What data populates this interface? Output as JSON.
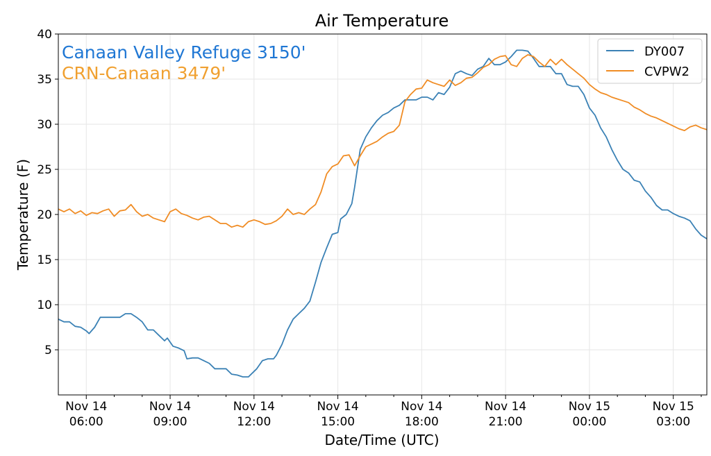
{
  "chart_data": {
    "type": "line",
    "title": "Air Temperature",
    "xlabel": "Date/Time (UTC)",
    "ylabel": "Temperature (F)",
    "xlim": [
      5.0,
      28.2
    ],
    "ylim": [
      0,
      40
    ],
    "yticks": [
      5,
      10,
      15,
      20,
      25,
      30,
      35,
      40
    ],
    "grid": true,
    "x_units": "hours since Nov 14 00:00 UTC",
    "xticks": [
      {
        "x": 6,
        "line1": "Nov 14",
        "line2": "06:00"
      },
      {
        "x": 9,
        "line1": "Nov 14",
        "line2": "09:00"
      },
      {
        "x": 12,
        "line1": "Nov 14",
        "line2": "12:00"
      },
      {
        "x": 15,
        "line1": "Nov 14",
        "line2": "15:00"
      },
      {
        "x": 18,
        "line1": "Nov 14",
        "line2": "18:00"
      },
      {
        "x": 21,
        "line1": "Nov 14",
        "line2": "21:00"
      },
      {
        "x": 24,
        "line1": "Nov 15",
        "line2": "00:00"
      },
      {
        "x": 27,
        "line1": "Nov 15",
        "line2": "03:00"
      }
    ],
    "minor_xticks": [
      7,
      8,
      10,
      11,
      13,
      14,
      16,
      17,
      19,
      20,
      22,
      23,
      25,
      26,
      28
    ],
    "annotations": [
      {
        "text": "Canaan Valley Refuge 3150'",
        "color": "#1f77d4"
      },
      {
        "text": "CRN-Canaan 3479'",
        "color": "#f0a030"
      }
    ],
    "legend": {
      "position": "top-right"
    },
    "series": [
      {
        "name": "DY007",
        "color": "#3a81b5",
        "points": [
          [
            5.0,
            8.4
          ],
          [
            5.2,
            8.1
          ],
          [
            5.4,
            8.1
          ],
          [
            5.6,
            7.6
          ],
          [
            5.8,
            7.5
          ],
          [
            6.0,
            7.1
          ],
          [
            6.1,
            6.8
          ],
          [
            6.3,
            7.5
          ],
          [
            6.5,
            8.6
          ],
          [
            6.8,
            8.6
          ],
          [
            7.0,
            8.6
          ],
          [
            7.2,
            8.6
          ],
          [
            7.4,
            9.0
          ],
          [
            7.6,
            9.0
          ],
          [
            7.8,
            8.6
          ],
          [
            8.0,
            8.1
          ],
          [
            8.2,
            7.2
          ],
          [
            8.4,
            7.2
          ],
          [
            8.6,
            6.6
          ],
          [
            8.8,
            6.0
          ],
          [
            8.9,
            6.3
          ],
          [
            9.1,
            5.4
          ],
          [
            9.3,
            5.2
          ],
          [
            9.5,
            4.9
          ],
          [
            9.6,
            4.0
          ],
          [
            9.8,
            4.1
          ],
          [
            10.0,
            4.1
          ],
          [
            10.2,
            3.8
          ],
          [
            10.4,
            3.5
          ],
          [
            10.6,
            2.9
          ],
          [
            10.8,
            2.9
          ],
          [
            11.0,
            2.9
          ],
          [
            11.2,
            2.3
          ],
          [
            11.4,
            2.2
          ],
          [
            11.6,
            2.0
          ],
          [
            11.8,
            2.0
          ],
          [
            12.0,
            2.6
          ],
          [
            12.1,
            2.9
          ],
          [
            12.3,
            3.8
          ],
          [
            12.5,
            4.0
          ],
          [
            12.7,
            4.0
          ],
          [
            12.8,
            4.4
          ],
          [
            13.0,
            5.6
          ],
          [
            13.2,
            7.2
          ],
          [
            13.4,
            8.4
          ],
          [
            13.6,
            9.0
          ],
          [
            13.8,
            9.6
          ],
          [
            14.0,
            10.4
          ],
          [
            14.2,
            12.5
          ],
          [
            14.4,
            14.7
          ],
          [
            14.6,
            16.3
          ],
          [
            14.8,
            17.8
          ],
          [
            15.0,
            18.0
          ],
          [
            15.1,
            19.5
          ],
          [
            15.3,
            20.0
          ],
          [
            15.5,
            21.2
          ],
          [
            15.6,
            23.0
          ],
          [
            15.8,
            27.2
          ],
          [
            16.0,
            28.6
          ],
          [
            16.2,
            29.6
          ],
          [
            16.4,
            30.4
          ],
          [
            16.6,
            31.0
          ],
          [
            16.8,
            31.3
          ],
          [
            17.0,
            31.8
          ],
          [
            17.2,
            32.1
          ],
          [
            17.4,
            32.7
          ],
          [
            17.6,
            32.7
          ],
          [
            17.8,
            32.7
          ],
          [
            18.0,
            33.0
          ],
          [
            18.2,
            33.0
          ],
          [
            18.4,
            32.7
          ],
          [
            18.6,
            33.5
          ],
          [
            18.8,
            33.3
          ],
          [
            19.0,
            34.1
          ],
          [
            19.2,
            35.6
          ],
          [
            19.4,
            35.9
          ],
          [
            19.6,
            35.6
          ],
          [
            19.8,
            35.4
          ],
          [
            20.0,
            36.1
          ],
          [
            20.2,
            36.4
          ],
          [
            20.4,
            37.3
          ],
          [
            20.6,
            36.6
          ],
          [
            20.8,
            36.6
          ],
          [
            21.0,
            36.9
          ],
          [
            21.2,
            37.5
          ],
          [
            21.4,
            38.2
          ],
          [
            21.6,
            38.2
          ],
          [
            21.8,
            38.1
          ],
          [
            22.0,
            37.3
          ],
          [
            22.2,
            36.4
          ],
          [
            22.4,
            36.4
          ],
          [
            22.6,
            36.4
          ],
          [
            22.8,
            35.6
          ],
          [
            23.0,
            35.6
          ],
          [
            23.2,
            34.4
          ],
          [
            23.4,
            34.2
          ],
          [
            23.6,
            34.2
          ],
          [
            23.8,
            33.3
          ],
          [
            24.0,
            31.8
          ],
          [
            24.2,
            31.0
          ],
          [
            24.4,
            29.6
          ],
          [
            24.6,
            28.6
          ],
          [
            24.8,
            27.2
          ],
          [
            25.0,
            26.0
          ],
          [
            25.2,
            25.0
          ],
          [
            25.4,
            24.6
          ],
          [
            25.6,
            23.8
          ],
          [
            25.8,
            23.6
          ],
          [
            26.0,
            22.6
          ],
          [
            26.2,
            21.9
          ],
          [
            26.4,
            21.0
          ],
          [
            26.6,
            20.5
          ],
          [
            26.8,
            20.5
          ],
          [
            27.0,
            20.1
          ],
          [
            27.2,
            19.8
          ],
          [
            27.4,
            19.6
          ],
          [
            27.6,
            19.3
          ],
          [
            27.8,
            18.4
          ],
          [
            28.0,
            17.7
          ],
          [
            28.2,
            17.3
          ]
        ]
      },
      {
        "name": "CVPW2",
        "color": "#f08c24",
        "points": [
          [
            5.0,
            20.6
          ],
          [
            5.2,
            20.3
          ],
          [
            5.4,
            20.6
          ],
          [
            5.6,
            20.1
          ],
          [
            5.8,
            20.4
          ],
          [
            6.0,
            19.9
          ],
          [
            6.2,
            20.2
          ],
          [
            6.4,
            20.1
          ],
          [
            6.6,
            20.4
          ],
          [
            6.8,
            20.6
          ],
          [
            7.0,
            19.8
          ],
          [
            7.2,
            20.4
          ],
          [
            7.4,
            20.5
          ],
          [
            7.6,
            21.1
          ],
          [
            7.8,
            20.3
          ],
          [
            8.0,
            19.8
          ],
          [
            8.2,
            20.0
          ],
          [
            8.4,
            19.6
          ],
          [
            8.6,
            19.4
          ],
          [
            8.8,
            19.2
          ],
          [
            9.0,
            20.3
          ],
          [
            9.2,
            20.6
          ],
          [
            9.4,
            20.1
          ],
          [
            9.6,
            19.9
          ],
          [
            9.8,
            19.6
          ],
          [
            10.0,
            19.4
          ],
          [
            10.2,
            19.7
          ],
          [
            10.4,
            19.8
          ],
          [
            10.6,
            19.4
          ],
          [
            10.8,
            19.0
          ],
          [
            11.0,
            19.0
          ],
          [
            11.2,
            18.6
          ],
          [
            11.4,
            18.8
          ],
          [
            11.6,
            18.6
          ],
          [
            11.8,
            19.2
          ],
          [
            12.0,
            19.4
          ],
          [
            12.2,
            19.2
          ],
          [
            12.4,
            18.9
          ],
          [
            12.6,
            19.0
          ],
          [
            12.8,
            19.3
          ],
          [
            13.0,
            19.8
          ],
          [
            13.2,
            20.6
          ],
          [
            13.4,
            20.0
          ],
          [
            13.6,
            20.2
          ],
          [
            13.8,
            20.0
          ],
          [
            14.0,
            20.6
          ],
          [
            14.2,
            21.1
          ],
          [
            14.4,
            22.5
          ],
          [
            14.6,
            24.5
          ],
          [
            14.8,
            25.3
          ],
          [
            15.0,
            25.6
          ],
          [
            15.2,
            26.5
          ],
          [
            15.4,
            26.6
          ],
          [
            15.6,
            25.4
          ],
          [
            15.8,
            26.5
          ],
          [
            16.0,
            27.5
          ],
          [
            16.2,
            27.8
          ],
          [
            16.4,
            28.1
          ],
          [
            16.6,
            28.6
          ],
          [
            16.8,
            29.0
          ],
          [
            17.0,
            29.2
          ],
          [
            17.2,
            29.9
          ],
          [
            17.4,
            32.5
          ],
          [
            17.6,
            33.3
          ],
          [
            17.8,
            33.9
          ],
          [
            18.0,
            34.0
          ],
          [
            18.2,
            34.9
          ],
          [
            18.4,
            34.6
          ],
          [
            18.6,
            34.4
          ],
          [
            18.8,
            34.2
          ],
          [
            19.0,
            34.9
          ],
          [
            19.2,
            34.3
          ],
          [
            19.4,
            34.6
          ],
          [
            19.6,
            35.1
          ],
          [
            19.8,
            35.2
          ],
          [
            20.0,
            35.7
          ],
          [
            20.2,
            36.3
          ],
          [
            20.4,
            36.6
          ],
          [
            20.6,
            37.2
          ],
          [
            20.8,
            37.5
          ],
          [
            21.0,
            37.6
          ],
          [
            21.2,
            36.6
          ],
          [
            21.4,
            36.4
          ],
          [
            21.6,
            37.3
          ],
          [
            21.8,
            37.7
          ],
          [
            22.0,
            37.5
          ],
          [
            22.2,
            36.9
          ],
          [
            22.4,
            36.4
          ],
          [
            22.6,
            37.2
          ],
          [
            22.8,
            36.6
          ],
          [
            23.0,
            37.2
          ],
          [
            23.2,
            36.6
          ],
          [
            23.4,
            36.1
          ],
          [
            23.6,
            35.6
          ],
          [
            23.8,
            35.1
          ],
          [
            24.0,
            34.4
          ],
          [
            24.2,
            33.9
          ],
          [
            24.4,
            33.5
          ],
          [
            24.6,
            33.3
          ],
          [
            24.8,
            33.0
          ],
          [
            25.0,
            32.8
          ],
          [
            25.2,
            32.6
          ],
          [
            25.4,
            32.4
          ],
          [
            25.6,
            31.9
          ],
          [
            25.8,
            31.6
          ],
          [
            26.0,
            31.2
          ],
          [
            26.2,
            30.9
          ],
          [
            26.4,
            30.7
          ],
          [
            26.6,
            30.4
          ],
          [
            26.8,
            30.1
          ],
          [
            27.0,
            29.8
          ],
          [
            27.2,
            29.5
          ],
          [
            27.4,
            29.3
          ],
          [
            27.6,
            29.7
          ],
          [
            27.8,
            29.9
          ],
          [
            28.0,
            29.6
          ],
          [
            28.2,
            29.4
          ]
        ]
      }
    ]
  }
}
